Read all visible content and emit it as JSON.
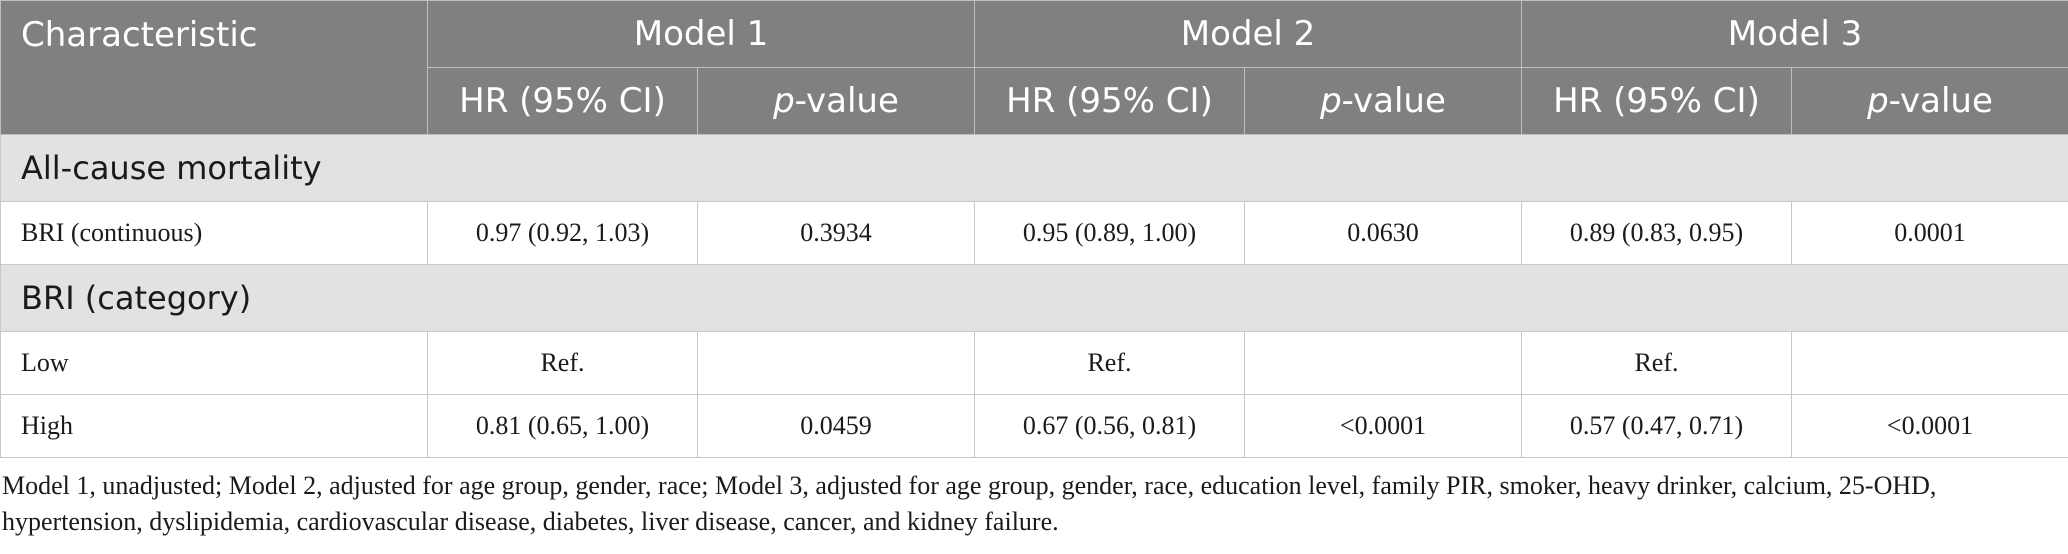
{
  "table": {
    "header": {
      "characteristic": "Characteristic",
      "models": [
        "Model 1",
        "Model 2",
        "Model 3"
      ],
      "hr_label": "HR (95% CI)",
      "p_italic": "p",
      "p_suffix": "-value"
    },
    "sections": [
      {
        "title": "All-cause mortality",
        "rows": [
          {
            "label": "BRI (continuous)",
            "m1_hr": "0.97 (0.92, 1.03)",
            "m1_p": "0.3934",
            "m2_hr": "0.95 (0.89, 1.00)",
            "m2_p": "0.0630",
            "m3_hr": "0.89 (0.83, 0.95)",
            "m3_p": "0.0001"
          }
        ]
      },
      {
        "title": "BRI (category)",
        "rows": [
          {
            "label": "Low",
            "m1_hr": "Ref.",
            "m1_p": "",
            "m2_hr": "Ref.",
            "m2_p": "",
            "m3_hr": "Ref.",
            "m3_p": ""
          },
          {
            "label": "High",
            "m1_hr": "0.81 (0.65, 1.00)",
            "m1_p": "0.0459",
            "m2_hr": "0.67 (0.56, 0.81)",
            "m2_p": "<0.0001",
            "m3_hr": "0.57 (0.47, 0.71)",
            "m3_p": "<0.0001"
          }
        ]
      }
    ]
  },
  "footnote": "Model 1, unadjusted; Model 2, adjusted for age group, gender, race; Model 3, adjusted for age group, gender, race, education level, family PIR, smoker, heavy drinker, calcium, 25-OHD, hypertension, dyslipidemia, cardiovascular disease, diabetes, liver disease, cancer, and kidney failure.",
  "colors": {
    "header_bg": "#7f8180",
    "section_bg": "#e2e2e2"
  }
}
